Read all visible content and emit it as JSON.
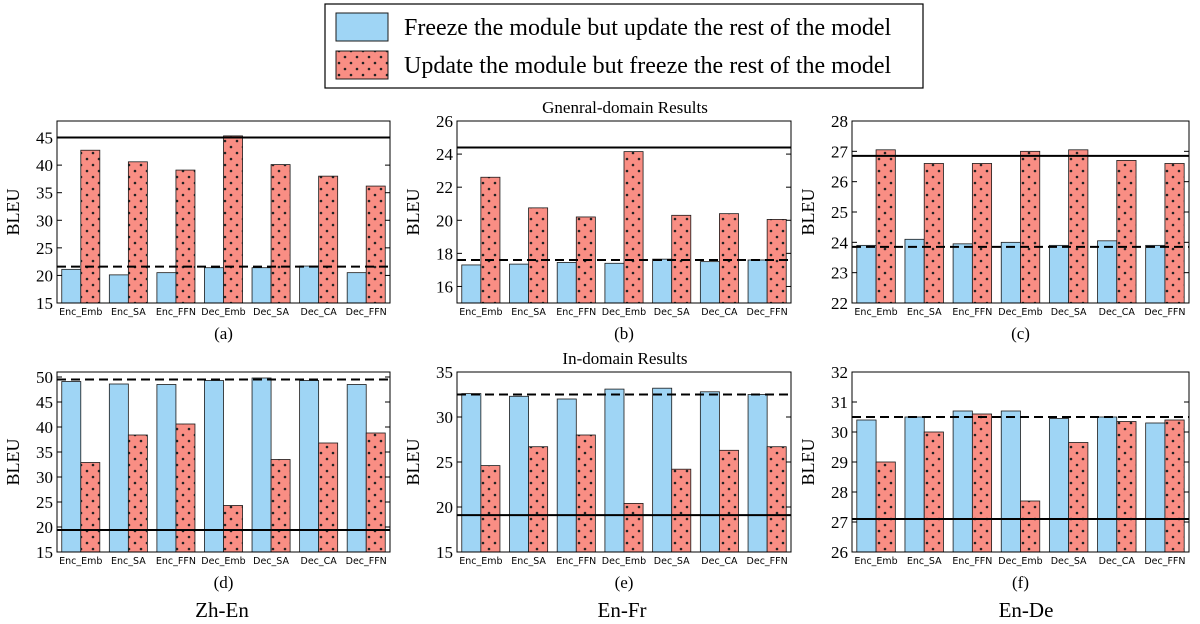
{
  "legend": {
    "freeze_label": "Freeze the module but update the rest of the model",
    "update_label": "Update the module but freeze the rest of the model"
  },
  "colors": {
    "freeze": "#9fd5f5",
    "update": "#f98e84",
    "stroke": "#1a1a1a"
  },
  "row_titles": [
    "Gnenral-domain Results",
    "In-domain Results"
  ],
  "column_labels": [
    "Zh-En",
    "En-Fr",
    "En-De"
  ],
  "chart_data": [
    {
      "type": "bar",
      "id": "a",
      "caption": "(a)",
      "ylabel": "BLEU",
      "categories": [
        "Enc_Emb",
        "Enc_SA",
        "Enc_FFN",
        "Dec_Emb",
        "Dec_SA",
        "Dec_CA",
        "Dec_FFN"
      ],
      "series": [
        {
          "name": "Freeze the module but update the rest of the model",
          "values": [
            21.1,
            20.1,
            20.5,
            21.4,
            21.4,
            21.7,
            20.5
          ]
        },
        {
          "name": "Update the module but freeze the rest of the model",
          "values": [
            42.7,
            40.6,
            39.1,
            45.3,
            40.1,
            38.0,
            36.2
          ]
        }
      ],
      "ylim": [
        15,
        48
      ],
      "yticks": [
        15,
        20,
        25,
        30,
        35,
        40,
        45
      ],
      "reference_lines": {
        "solid": 45.0,
        "dashed": 21.6
      }
    },
    {
      "type": "bar",
      "id": "b",
      "caption": "(b)",
      "ylabel": "BLEU",
      "categories": [
        "Enc_Emb",
        "Enc_SA",
        "Enc_FFN",
        "Dec_Emb",
        "Dec_SA",
        "Dec_CA",
        "Dec_FFN"
      ],
      "series": [
        {
          "name": "Freeze the module but update the rest of the model",
          "values": [
            17.3,
            17.35,
            17.45,
            17.4,
            17.65,
            17.5,
            17.6
          ]
        },
        {
          "name": "Update the module but freeze the rest of the model",
          "values": [
            22.6,
            20.75,
            20.2,
            24.15,
            20.3,
            20.4,
            20.05
          ]
        }
      ],
      "ylim": [
        15,
        26
      ],
      "yticks": [
        16,
        18,
        20,
        22,
        24,
        26
      ],
      "reference_lines": {
        "solid": 24.4,
        "dashed": 17.6
      }
    },
    {
      "type": "bar",
      "id": "c",
      "caption": "(c)",
      "ylabel": "BLEU",
      "categories": [
        "Enc_Emb",
        "Enc_SA",
        "Enc_FFN",
        "Dec_Emb",
        "Dec_SA",
        "Dec_CA",
        "Dec_FFN"
      ],
      "series": [
        {
          "name": "Freeze the module but update the rest of the model",
          "values": [
            23.9,
            24.1,
            23.95,
            24.0,
            23.9,
            24.05,
            23.9
          ]
        },
        {
          "name": "Update the module but freeze the rest of the model",
          "values": [
            27.05,
            26.6,
            26.6,
            27.0,
            27.05,
            26.7,
            26.6
          ]
        }
      ],
      "ylim": [
        22,
        28
      ],
      "yticks": [
        22,
        23,
        24,
        25,
        26,
        27,
        28
      ],
      "reference_lines": {
        "solid": 26.85,
        "dashed": 23.85
      }
    },
    {
      "type": "bar",
      "id": "d",
      "caption": "(d)",
      "ylabel": "BLEU",
      "categories": [
        "Enc_Emb",
        "Enc_SA",
        "Enc_FFN",
        "Dec_Emb",
        "Dec_SA",
        "Dec_CA",
        "Dec_FFN"
      ],
      "series": [
        {
          "name": "Freeze the module but update the rest of the model",
          "values": [
            49.1,
            48.6,
            48.5,
            49.3,
            49.8,
            49.3,
            48.5
          ]
        },
        {
          "name": "Update the module but freeze the rest of the model",
          "values": [
            32.9,
            38.4,
            40.6,
            24.3,
            33.5,
            36.8,
            38.8
          ]
        }
      ],
      "ylim": [
        15,
        51
      ],
      "yticks": [
        15,
        20,
        25,
        30,
        35,
        40,
        45,
        50
      ],
      "reference_lines": {
        "solid": 19.4,
        "dashed": 49.5
      }
    },
    {
      "type": "bar",
      "id": "e",
      "caption": "(e)",
      "ylabel": "BLEU",
      "categories": [
        "Enc_Emb",
        "Enc_SA",
        "Enc_FFN",
        "Dec_Emb",
        "Dec_SA",
        "Dec_CA",
        "Dec_FFN"
      ],
      "series": [
        {
          "name": "Freeze the module but update the rest of the model",
          "values": [
            32.6,
            32.3,
            32.0,
            33.1,
            33.2,
            32.8,
            32.5
          ]
        },
        {
          "name": "Update the module but freeze the rest of the model",
          "values": [
            24.6,
            26.7,
            28.0,
            20.4,
            24.2,
            26.3,
            26.7
          ]
        }
      ],
      "ylim": [
        15,
        35
      ],
      "yticks": [
        15,
        20,
        25,
        30,
        35
      ],
      "reference_lines": {
        "solid": 19.1,
        "dashed": 32.5
      }
    },
    {
      "type": "bar",
      "id": "f",
      "caption": "(f)",
      "ylabel": "BLEU",
      "categories": [
        "Enc_Emb",
        "Enc_SA",
        "Enc_FFN",
        "Dec_Emb",
        "Dec_SA",
        "Dec_CA",
        "Dec_FFN"
      ],
      "series": [
        {
          "name": "Freeze the module but update the rest of the model",
          "values": [
            30.4,
            30.5,
            30.7,
            30.7,
            30.45,
            30.5,
            30.3
          ]
        },
        {
          "name": "Update the module but freeze the rest of the model",
          "values": [
            29.0,
            30.0,
            30.6,
            27.7,
            29.65,
            30.35,
            30.4
          ]
        }
      ],
      "ylim": [
        26,
        32
      ],
      "yticks": [
        26,
        27,
        28,
        29,
        30,
        31,
        32
      ],
      "reference_lines": {
        "solid": 27.1,
        "dashed": 30.5
      }
    }
  ]
}
